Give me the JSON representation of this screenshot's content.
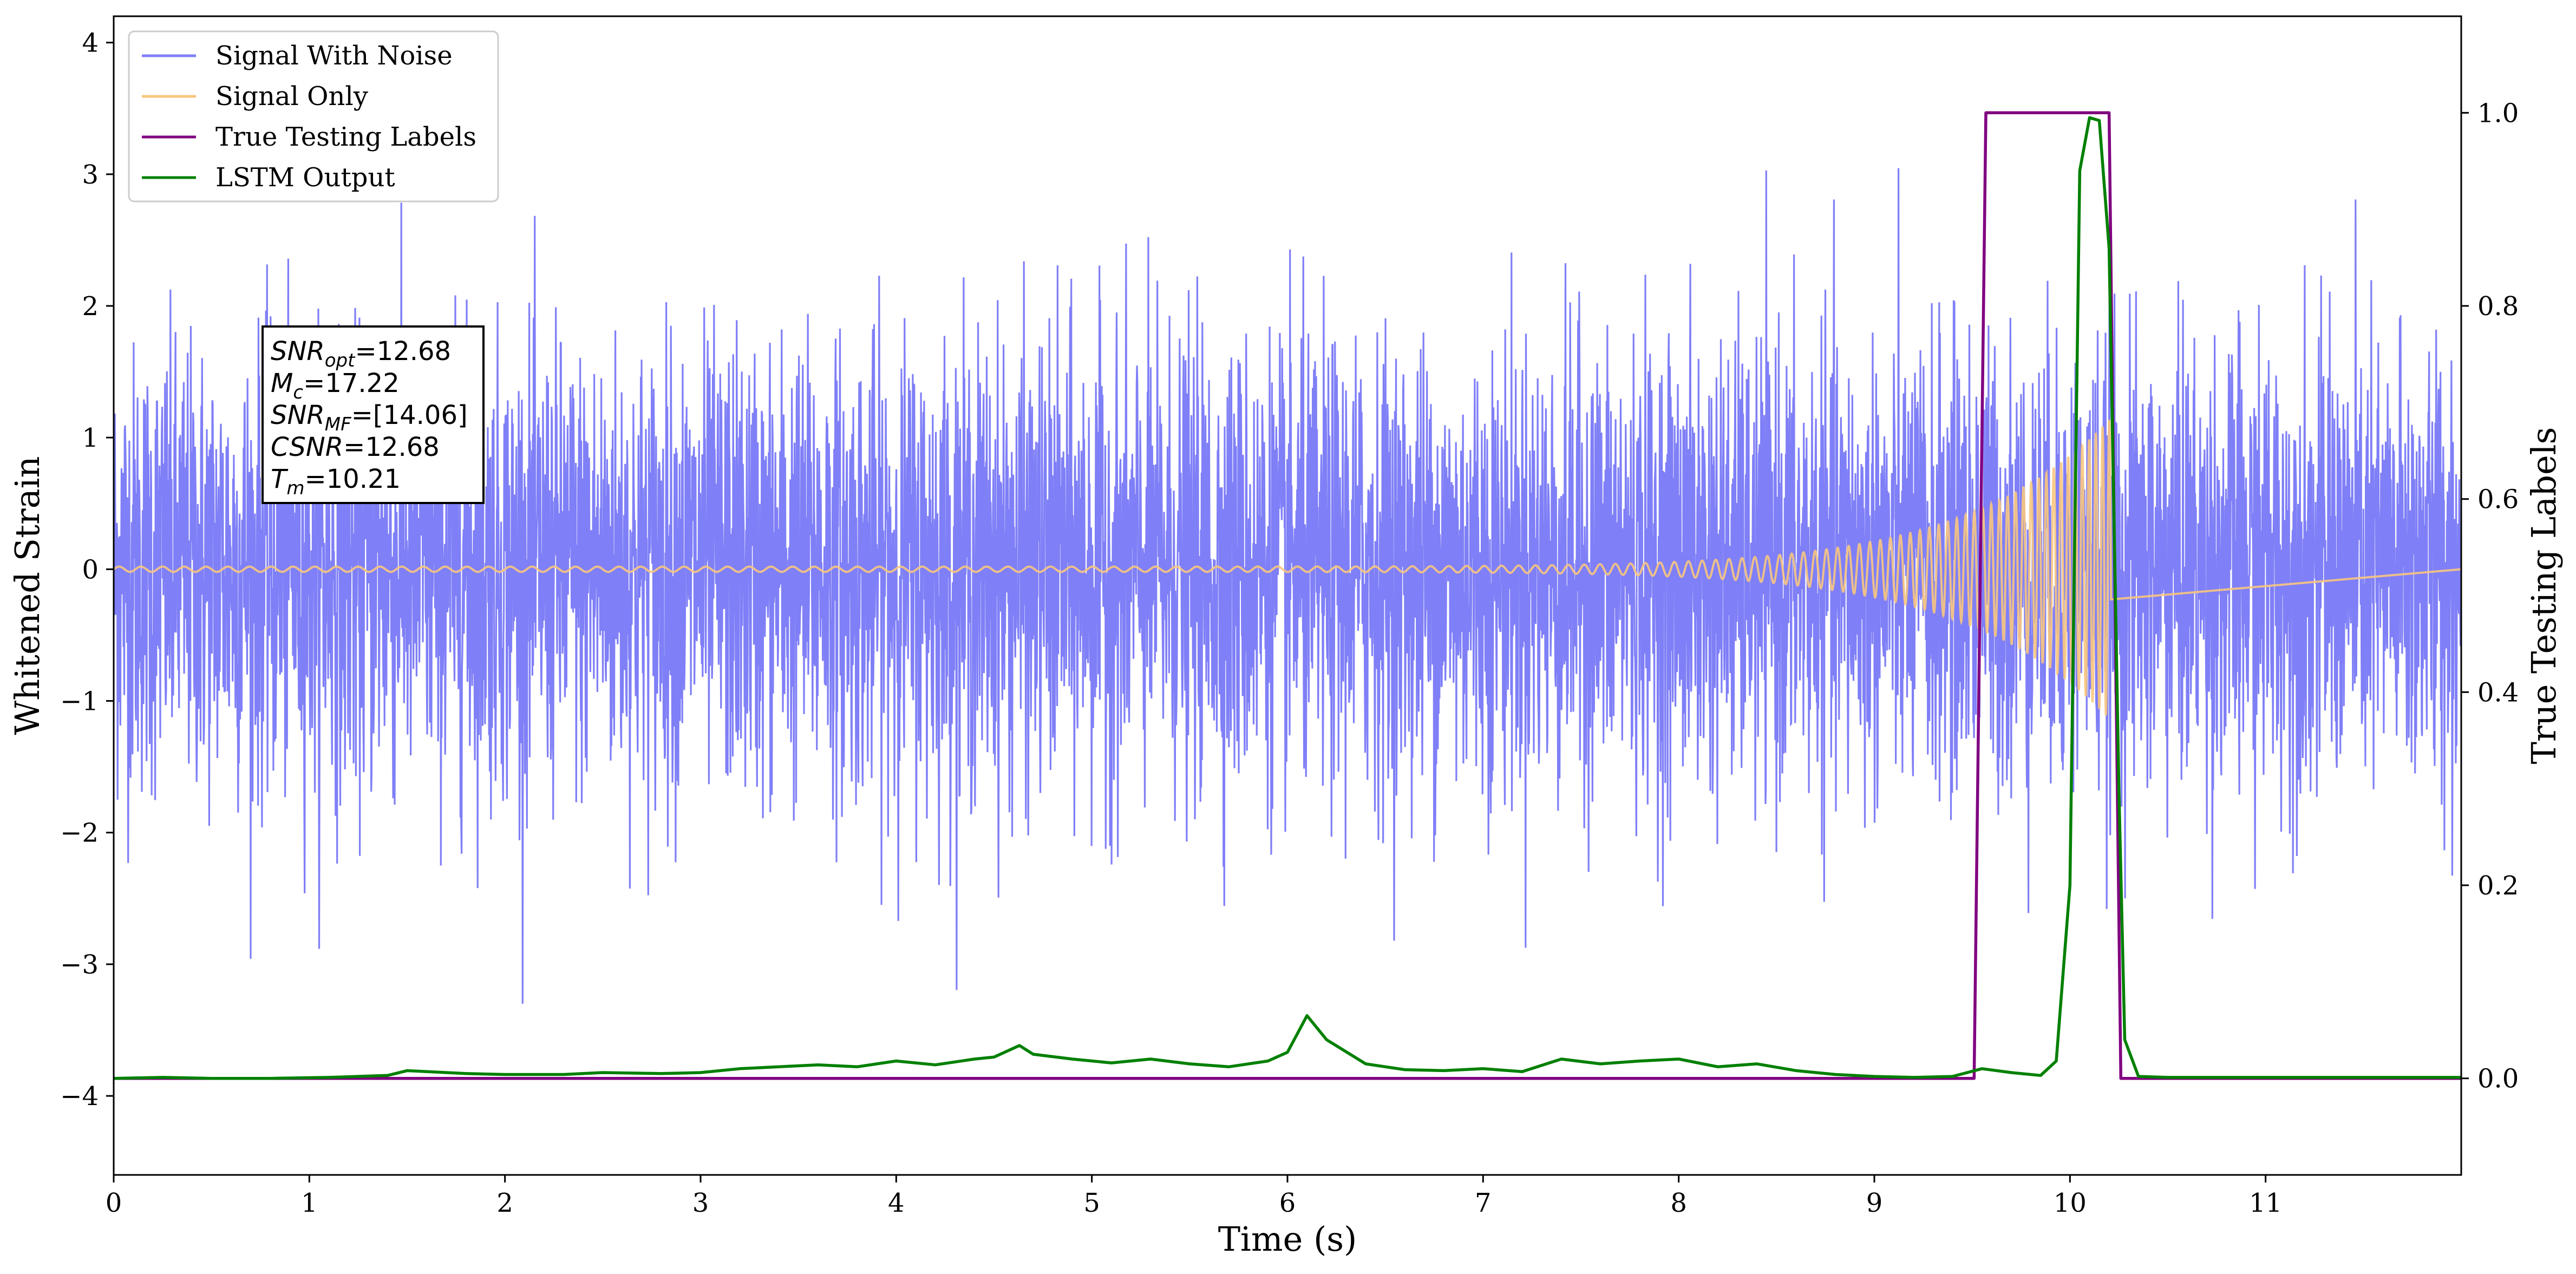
{
  "chart_data": {
    "type": "line",
    "xlabel": "Time (s)",
    "ylabel": "Whitened Strain",
    "y2label": "True Testing Labels",
    "xlim": [
      0,
      12.0
    ],
    "ylim": [
      -4.6,
      4.2
    ],
    "y2lim": [
      -0.1,
      1.1
    ],
    "x_ticks": [
      0,
      1,
      2,
      3,
      4,
      5,
      6,
      7,
      8,
      9,
      10,
      11
    ],
    "y_ticks": [
      -4,
      -3,
      -2,
      -1,
      0,
      1,
      2,
      3,
      4
    ],
    "y2_ticks": [
      0.0,
      0.2,
      0.4,
      0.6,
      0.8,
      1.0
    ],
    "x_tick_labels": [
      "0",
      "1",
      "2",
      "3",
      "4",
      "5",
      "6",
      "7",
      "8",
      "9",
      "10",
      "11"
    ],
    "y_tick_labels": [
      "−4",
      "−3",
      "−2",
      "−1",
      "0",
      "1",
      "2",
      "3",
      "4"
    ],
    "y2_tick_labels": [
      "0.0",
      "0.2",
      "0.4",
      "0.6",
      "0.8",
      "1.0"
    ],
    "legend_position": "top-left",
    "grid": false,
    "series": [
      {
        "name": "Signal With Noise",
        "axis": "left",
        "color": "#7f7ff7",
        "kind": "gaussian-noise",
        "x_range": [
          0,
          12.0
        ],
        "std": 0.85,
        "peak_max": 3.3,
        "peak_min": -3.3
      },
      {
        "name": "Signal Only",
        "axis": "left",
        "color": "#f8c77e",
        "kind": "chirp",
        "x_range": [
          0,
          10.21
        ],
        "amplitude_start": 0.02,
        "amplitude_end": 1.15,
        "frequency_start": 9,
        "frequency_end": 30,
        "merger_time": 10.21
      },
      {
        "name": "True Testing Labels",
        "axis": "right",
        "color": "#800080",
        "x": [
          0,
          9.51,
          9.57,
          10.2,
          10.26,
          12.0
        ],
        "y": [
          0,
          0,
          1,
          1,
          0,
          0
        ]
      },
      {
        "name": "LSTM Output",
        "axis": "right",
        "color": "#008000",
        "x": [
          0,
          0.25,
          0.5,
          0.8,
          1.1,
          1.4,
          1.5,
          1.8,
          2.0,
          2.3,
          2.5,
          2.8,
          3.0,
          3.2,
          3.4,
          3.6,
          3.8,
          4.0,
          4.2,
          4.4,
          4.5,
          4.63,
          4.7,
          4.9,
          5.1,
          5.3,
          5.5,
          5.7,
          5.9,
          6.0,
          6.1,
          6.2,
          6.4,
          6.6,
          6.8,
          7.0,
          7.2,
          7.4,
          7.6,
          7.8,
          8.0,
          8.2,
          8.4,
          8.6,
          8.8,
          9.0,
          9.2,
          9.4,
          9.55,
          9.7,
          9.85,
          9.93,
          10.0,
          10.05,
          10.1,
          10.15,
          10.2,
          10.25,
          10.28,
          10.35,
          10.5,
          12.0
        ],
        "y": [
          0,
          0.001,
          0,
          0,
          0.001,
          0.003,
          0.008,
          0.005,
          0.004,
          0.004,
          0.006,
          0.005,
          0.006,
          0.01,
          0.012,
          0.014,
          0.012,
          0.018,
          0.014,
          0.02,
          0.022,
          0.034,
          0.025,
          0.02,
          0.016,
          0.02,
          0.015,
          0.012,
          0.018,
          0.027,
          0.065,
          0.04,
          0.015,
          0.009,
          0.008,
          0.01,
          0.007,
          0.02,
          0.015,
          0.018,
          0.02,
          0.012,
          0.015,
          0.008,
          0.004,
          0.002,
          0.001,
          0.002,
          0.01,
          0.006,
          0.003,
          0.018,
          0.2,
          0.94,
          0.995,
          0.992,
          0.86,
          0.3,
          0.04,
          0.002,
          0.001,
          0.001
        ]
      }
    ],
    "annotation": [
      {
        "base": "SNR",
        "sub": "opt",
        "value": "=12.68"
      },
      {
        "base": "M",
        "sub": "c",
        "value": "=17.22"
      },
      {
        "base": "SNR",
        "sub": "MF",
        "value": "=[14.06]"
      },
      {
        "base": "CSNR",
        "sub": "",
        "value": "=12.68"
      },
      {
        "base": "T",
        "sub": "m",
        "value": "=10.21"
      }
    ]
  }
}
